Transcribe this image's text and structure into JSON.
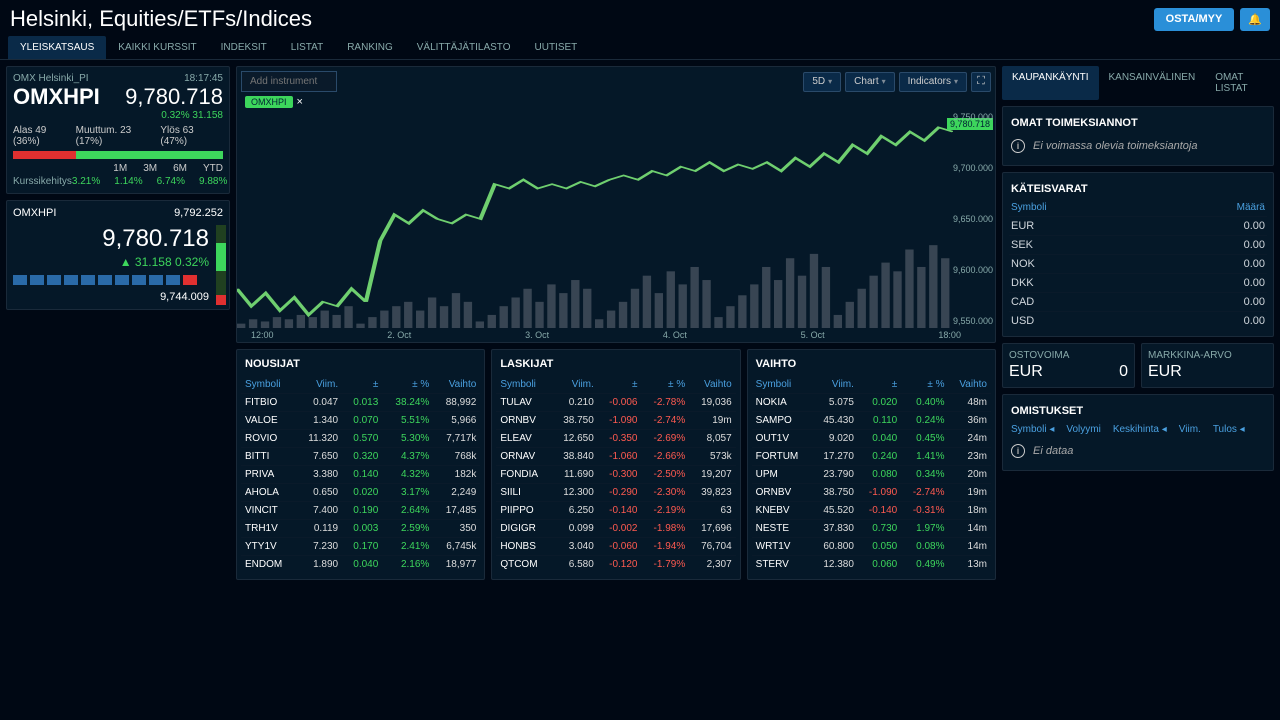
{
  "header": {
    "title": "Helsinki, Equities/ETFs/Indices",
    "buy_sell": "OSTA/MYY",
    "bell": "🔔"
  },
  "main_tabs": [
    "YLEISKATSAUS",
    "KAIKKI KURSSIT",
    "INDEKSIT",
    "LISTAT",
    "RANKING",
    "VÄLITTÄJÄTILASTO",
    "UUTISET"
  ],
  "main_tab_active": 0,
  "index_card": {
    "subtitle": "OMX Helsinki_PI",
    "time": "18:17:45",
    "symbol": "OMXHPI",
    "value": "9,780.718",
    "change_pct": "0.32%",
    "change_abs": "31.158",
    "down": "Alas 49 (36%)",
    "unch": "Muuttum. 23 (17%)",
    "up": "Ylös 63 (47%)",
    "periods": [
      "1M",
      "3M",
      "6M",
      "YTD"
    ],
    "kurssi_label": "Kurssikehitys",
    "kurssi_vals": [
      "3.21%",
      "1.14%",
      "6.74%",
      "9.88%"
    ]
  },
  "range_card": {
    "symbol": "OMXHPI",
    "high": "9,792.252",
    "value": "9,780.718",
    "change_abs": "31.158",
    "change_pct": "0.32%",
    "low": "9,744.009",
    "bar_colors": [
      "#2a6aa8",
      "#2a6aa8",
      "#2a6aa8",
      "#2a6aa8",
      "#2a6aa8",
      "#2a6aa8",
      "#2a6aa8",
      "#2a6aa8",
      "#2a6aa8",
      "#2a6aa8",
      "#e03030"
    ]
  },
  "chart": {
    "add_placeholder": "Add instrument",
    "range_btn": "5D",
    "chart_btn": "Chart",
    "ind_btn": "Indicators",
    "chip": "OMXHPI",
    "current": "9,780.718",
    "y_ticks": [
      "9,750.000",
      "9,700.000",
      "9,650.000",
      "9,600.000",
      "9,550.000"
    ],
    "x_ticks": [
      "12:00",
      "2. Oct",
      "3. Oct",
      "4. Oct",
      "5. Oct",
      "18:00"
    ],
    "line_color": "#6fcf6f",
    "vol_color": "#5a6470",
    "points": [
      [
        0,
        0.18
      ],
      [
        2,
        0.1
      ],
      [
        4,
        0.16
      ],
      [
        6,
        0.08
      ],
      [
        8,
        0.14
      ],
      [
        10,
        0.06
      ],
      [
        12,
        0.12
      ],
      [
        14,
        0.1
      ],
      [
        16,
        0.18
      ],
      [
        18,
        0.12
      ],
      [
        20,
        0.4
      ],
      [
        22,
        0.52
      ],
      [
        24,
        0.48
      ],
      [
        26,
        0.54
      ],
      [
        28,
        0.5
      ],
      [
        30,
        0.48
      ],
      [
        32,
        0.52
      ],
      [
        34,
        0.5
      ],
      [
        36,
        0.66
      ],
      [
        38,
        0.64
      ],
      [
        40,
        0.68
      ],
      [
        42,
        0.64
      ],
      [
        44,
        0.66
      ],
      [
        46,
        0.64
      ],
      [
        48,
        0.67
      ],
      [
        50,
        0.65
      ],
      [
        52,
        0.68
      ],
      [
        54,
        0.7
      ],
      [
        56,
        0.68
      ],
      [
        58,
        0.72
      ],
      [
        60,
        0.7
      ],
      [
        62,
        0.74
      ],
      [
        64,
        0.72
      ],
      [
        66,
        0.76
      ],
      [
        68,
        0.72
      ],
      [
        70,
        0.75
      ],
      [
        72,
        0.73
      ],
      [
        74,
        0.76
      ],
      [
        76,
        0.72
      ],
      [
        78,
        0.78
      ],
      [
        80,
        0.74
      ],
      [
        82,
        0.8
      ],
      [
        84,
        0.76
      ],
      [
        86,
        0.84
      ],
      [
        88,
        0.8
      ],
      [
        90,
        0.88
      ],
      [
        92,
        0.84
      ],
      [
        94,
        0.9
      ],
      [
        96,
        0.86
      ],
      [
        98,
        0.92
      ],
      [
        100,
        0.9
      ]
    ],
    "volumes": [
      0.02,
      0.04,
      0.03,
      0.05,
      0.04,
      0.06,
      0.05,
      0.08,
      0.06,
      0.1,
      0.02,
      0.05,
      0.08,
      0.1,
      0.12,
      0.08,
      0.14,
      0.1,
      0.16,
      0.12,
      0.03,
      0.06,
      0.1,
      0.14,
      0.18,
      0.12,
      0.2,
      0.16,
      0.22,
      0.18,
      0.04,
      0.08,
      0.12,
      0.18,
      0.24,
      0.16,
      0.26,
      0.2,
      0.28,
      0.22,
      0.05,
      0.1,
      0.15,
      0.2,
      0.28,
      0.22,
      0.32,
      0.24,
      0.34,
      0.28,
      0.06,
      0.12,
      0.18,
      0.24,
      0.3,
      0.26,
      0.36,
      0.28,
      0.38,
      0.32
    ]
  },
  "tables": {
    "columns": [
      "Symboli",
      "Viim.",
      "±",
      "± %",
      "Vaihto"
    ],
    "gainers_title": "NOUSIJAT",
    "gainers": [
      [
        "FITBIO",
        "0.047",
        "0.013",
        "38.24%",
        "88,992"
      ],
      [
        "VALOE",
        "1.340",
        "0.070",
        "5.51%",
        "5,966"
      ],
      [
        "ROVIO",
        "11.320",
        "0.570",
        "5.30%",
        "7,717k"
      ],
      [
        "BITTI",
        "7.650",
        "0.320",
        "4.37%",
        "768k"
      ],
      [
        "PRIVA",
        "3.380",
        "0.140",
        "4.32%",
        "182k"
      ],
      [
        "AHOLA",
        "0.650",
        "0.020",
        "3.17%",
        "2,249"
      ],
      [
        "VINCIT",
        "7.400",
        "0.190",
        "2.64%",
        "17,485"
      ],
      [
        "TRH1V",
        "0.119",
        "0.003",
        "2.59%",
        "350"
      ],
      [
        "YTY1V",
        "7.230",
        "0.170",
        "2.41%",
        "6,745k"
      ],
      [
        "ENDOM",
        "1.890",
        "0.040",
        "2.16%",
        "18,977"
      ]
    ],
    "losers_title": "LASKIJAT",
    "losers": [
      [
        "TULAV",
        "0.210",
        "-0.006",
        "-2.78%",
        "19,036"
      ],
      [
        "ORNBV",
        "38.750",
        "-1.090",
        "-2.74%",
        "19m"
      ],
      [
        "ELEAV",
        "12.650",
        "-0.350",
        "-2.69%",
        "8,057"
      ],
      [
        "ORNAV",
        "38.840",
        "-1.060",
        "-2.66%",
        "573k"
      ],
      [
        "FONDIA",
        "11.690",
        "-0.300",
        "-2.50%",
        "19,207"
      ],
      [
        "SIILI",
        "12.300",
        "-0.290",
        "-2.30%",
        "39,823"
      ],
      [
        "PIIPPO",
        "6.250",
        "-0.140",
        "-2.19%",
        "63"
      ],
      [
        "DIGIGR",
        "0.099",
        "-0.002",
        "-1.98%",
        "17,696"
      ],
      [
        "HONBS",
        "3.040",
        "-0.060",
        "-1.94%",
        "76,704"
      ],
      [
        "QTCOM",
        "6.580",
        "-0.120",
        "-1.79%",
        "2,307"
      ]
    ],
    "volume_title": "VAIHTO",
    "volume": [
      [
        "NOKIA",
        "5.075",
        "0.020",
        "0.40%",
        "48m"
      ],
      [
        "SAMPO",
        "45.430",
        "0.110",
        "0.24%",
        "36m"
      ],
      [
        "OUT1V",
        "9.020",
        "0.040",
        "0.45%",
        "24m"
      ],
      [
        "FORTUM",
        "17.270",
        "0.240",
        "1.41%",
        "23m"
      ],
      [
        "UPM",
        "23.790",
        "0.080",
        "0.34%",
        "20m"
      ],
      [
        "ORNBV",
        "38.750",
        "-1.090",
        "-2.74%",
        "19m"
      ],
      [
        "KNEBV",
        "45.520",
        "-0.140",
        "-0.31%",
        "18m"
      ],
      [
        "NESTE",
        "37.830",
        "0.730",
        "1.97%",
        "14m"
      ],
      [
        "WRT1V",
        "60.800",
        "0.050",
        "0.08%",
        "14m"
      ],
      [
        "STERV",
        "12.380",
        "0.060",
        "0.49%",
        "13m"
      ]
    ]
  },
  "right_tabs": [
    "KAUPANKÄYNTI",
    "KANSAINVÄLINEN",
    "OMAT LISTAT"
  ],
  "right_tab_active": 0,
  "orders": {
    "title": "OMAT TOIMEKSIANNOT",
    "empty": "Ei voimassa olevia toimeksiantoja"
  },
  "cash": {
    "title": "KÄTEISVARAT",
    "col_symbol": "Symboli",
    "col_amount": "Määrä",
    "rows": [
      [
        "EUR",
        "0.00"
      ],
      [
        "SEK",
        "0.00"
      ],
      [
        "NOK",
        "0.00"
      ],
      [
        "DKK",
        "0.00"
      ],
      [
        "CAD",
        "0.00"
      ],
      [
        "USD",
        "0.00"
      ]
    ]
  },
  "stats": {
    "buying_power_label": "OSTOVOIMA",
    "buying_power_ccy": "EUR",
    "buying_power_val": "0",
    "market_value_label": "MARKKINA-ARVO",
    "market_value_ccy": "EUR"
  },
  "holdings": {
    "title": "OMISTUKSET",
    "cols": [
      "Symboli",
      "Volyymi",
      "Keskihinta",
      "Viim.",
      "Tulos"
    ],
    "empty": "Ei dataa"
  },
  "colors": {
    "bg": "#000814",
    "panel": "#051828",
    "border": "#1a2a3a",
    "pos": "#3dd65c",
    "neg": "#ff5a50",
    "link": "#4aa0e0",
    "primary": "#2a8fd8"
  }
}
